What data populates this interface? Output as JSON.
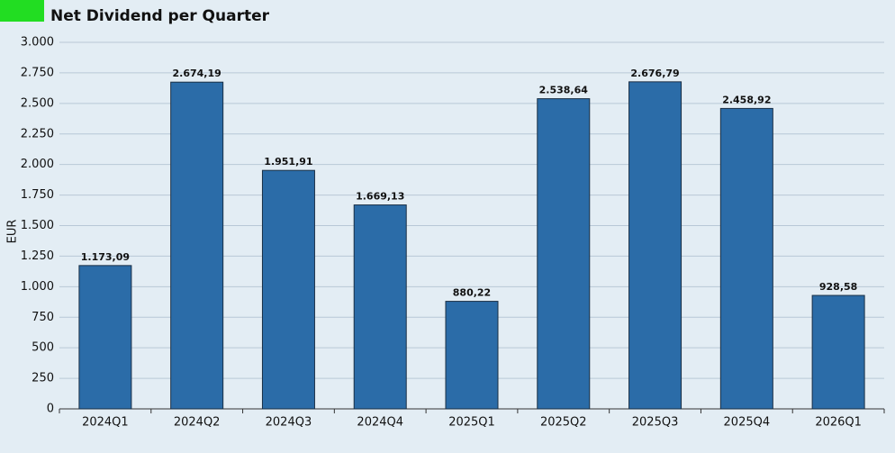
{
  "chart_data": {
    "type": "bar",
    "title": "Net Dividend per Quarter",
    "y_label": "EUR",
    "categories": [
      "2024Q1",
      "2024Q2",
      "2024Q3",
      "2024Q4",
      "2025Q1",
      "2025Q2",
      "2025Q3",
      "2025Q4",
      "2026Q1"
    ],
    "values": [
      1173.09,
      2674.19,
      1951.91,
      1669.13,
      880.22,
      2538.64,
      2676.79,
      2458.92,
      928.58
    ],
    "value_labels": [
      "1.173,09",
      "2.674,19",
      "1.951,91",
      "1.669,13",
      "880,22",
      "2.538,64",
      "2.676,79",
      "2.458,92",
      "928,58"
    ],
    "color": "#2b6ca8",
    "ylim": [
      0,
      3000
    ],
    "yticks": [
      0,
      250,
      500,
      750,
      {
        "value": 1000,
        "label": "1.000"
      },
      {
        "value": 1250,
        "label": "1.250"
      },
      {
        "value": 1500,
        "label": "1.500"
      },
      {
        "value": 1750,
        "label": "1.750"
      },
      {
        "value": 2000,
        "label": "2.000"
      },
      {
        "value": 2250,
        "label": "2.250"
      },
      {
        "value": 2500,
        "label": "2.500"
      },
      {
        "value": 2750,
        "label": "2.750"
      },
      {
        "value": 3000,
        "label": "3.000"
      }
    ],
    "grid": true
  }
}
